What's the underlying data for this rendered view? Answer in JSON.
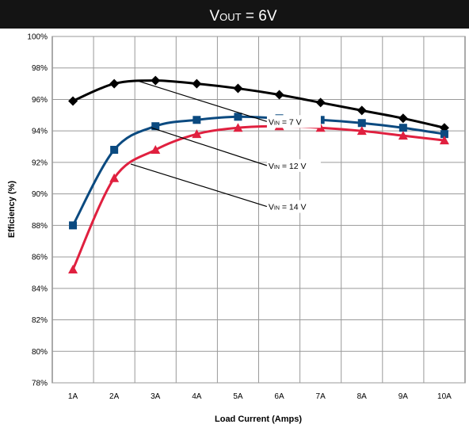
{
  "chart_data": {
    "type": "line",
    "title": "VOUT = 6V",
    "title_main": "V",
    "title_sub": "OUT",
    "title_rest": " = 6V",
    "xlabel": "Load Current (Amps)",
    "ylabel": "Efficiency (%)",
    "categories": [
      "1A",
      "2A",
      "3A",
      "4A",
      "5A",
      "6A",
      "7A",
      "8A",
      "9A",
      "10A"
    ],
    "x": [
      1,
      2,
      3,
      4,
      5,
      6,
      7,
      8,
      9,
      10
    ],
    "xlim": [
      0.5,
      10.5
    ],
    "ylim": [
      78,
      100
    ],
    "yticks": [
      78,
      80,
      82,
      84,
      86,
      88,
      90,
      92,
      94,
      96,
      98,
      100
    ],
    "ytick_labels": [
      "78%",
      "80%",
      "82%",
      "84%",
      "86%",
      "88%",
      "90%",
      "92%",
      "94%",
      "96%",
      "98%",
      "100%"
    ],
    "grid": true,
    "legend": "none",
    "series": [
      {
        "name": "VIN = 7 V",
        "label_main": "V",
        "label_sub": "IN",
        "label_rest": " = 7 V",
        "marker": "diamond",
        "color": "#000000",
        "values": [
          95.9,
          97.0,
          97.2,
          97.0,
          96.7,
          96.3,
          95.8,
          95.3,
          94.8,
          94.2
        ]
      },
      {
        "name": "VIN = 12 V",
        "label_main": "V",
        "label_sub": "IN",
        "label_rest": " = 12 V",
        "marker": "square",
        "color": "#0b4a80",
        "values": [
          88.0,
          92.8,
          94.3,
          94.7,
          94.9,
          94.8,
          94.7,
          94.5,
          94.2,
          93.8
        ]
      },
      {
        "name": "VIN = 14 V",
        "label_main": "V",
        "label_sub": "IN",
        "label_rest": " = 14 V",
        "marker": "triangle",
        "color": "#e0203f",
        "values": [
          85.2,
          91.0,
          92.8,
          93.8,
          94.2,
          94.3,
          94.2,
          94.0,
          93.7,
          93.4
        ]
      }
    ],
    "annotations": [
      {
        "series": 0,
        "text": "VIN = 7 V",
        "anchor_x": 2.6,
        "anchor_y": 97.15,
        "label_x": 5.7,
        "label_y": 94.6
      },
      {
        "series": 1,
        "text": "VIN = 12 V",
        "anchor_x": 2.9,
        "anchor_y": 94.2,
        "label_x": 5.7,
        "label_y": 91.8
      },
      {
        "series": 2,
        "text": "VIN = 14 V",
        "anchor_x": 2.4,
        "anchor_y": 91.9,
        "label_x": 5.7,
        "label_y": 89.2
      }
    ]
  }
}
